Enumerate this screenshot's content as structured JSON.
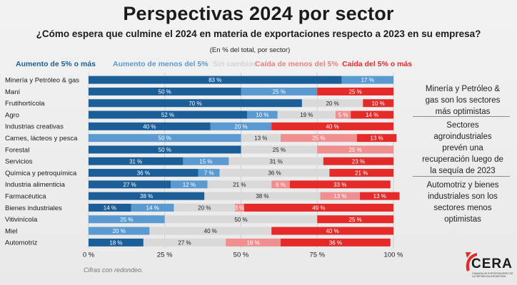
{
  "title": "Perspectivas 2024 por sector",
  "subtitle": "¿Cómo espera que culmine el 2024 en materia de exportaciones respecto a 2023 en su empresa?",
  "note": "(En % del total, por sector)",
  "footnote": "Cifras con redondeo.",
  "sidebar": {
    "text1": "Minería y Petróleo & gas son los sectores más optimistas",
    "text2": "Sectores agroindustriales prevén una recuperación luego de la sequía de 2023",
    "text3": "Automotriz y bienes industriales son los sectores menos optimistas"
  },
  "logo": {
    "name": "CERA",
    "tagline": "CÁMARA DE EXPORTADORES DE LA REPÚBLICA ARGENTINA"
  },
  "chart_data": {
    "type": "bar",
    "orientation": "horizontal",
    "stacked": true,
    "xlim": [
      0,
      100
    ],
    "x_ticks": [
      "0 %",
      "25 %",
      "50 %",
      "75 %",
      "100 %"
    ],
    "grid": true,
    "legend_position": "top",
    "categories": [
      "Minería y Petróleo & gas",
      "Maní",
      "Frutihortícola",
      "Agro",
      "Industrias creativas",
      "Carnes, lácteos y pesca",
      "Forestal",
      "Servicios",
      "Química y petroquímica",
      "Industria alimenticia",
      "Farmacéutica",
      "Bienes industriales",
      "Vitivinícola",
      "Miel",
      "Automotriz"
    ],
    "series": [
      {
        "name": "Aumento de 5% o más",
        "color": "#1b5e98",
        "values": [
          83,
          50,
          70,
          52,
          40,
          0,
          50,
          31,
          36,
          27,
          38,
          14,
          0,
          0,
          18
        ]
      },
      {
        "name": "Aumento de menos del 5%",
        "color": "#5b9ad0",
        "values": [
          17,
          25,
          0,
          10,
          20,
          50,
          0,
          15,
          7,
          12,
          0,
          14,
          25,
          20,
          0
        ]
      },
      {
        "name": "Sin cambios",
        "color": "#d9d9d9",
        "values": [
          0,
          0,
          20,
          19,
          0,
          13,
          25,
          31,
          36,
          21,
          38,
          20,
          50,
          40,
          27
        ]
      },
      {
        "name": "Caída de menos del 5%",
        "color": "#f08f8f",
        "values": [
          0,
          0,
          0,
          5,
          0,
          25,
          25,
          0,
          0,
          6,
          13,
          3,
          0,
          0,
          18
        ]
      },
      {
        "name": "Caída del 5% o más",
        "color": "#e52a2a",
        "values": [
          0,
          25,
          10,
          14,
          40,
          13,
          0,
          23,
          21,
          33,
          13,
          49,
          25,
          40,
          36
        ]
      }
    ]
  }
}
